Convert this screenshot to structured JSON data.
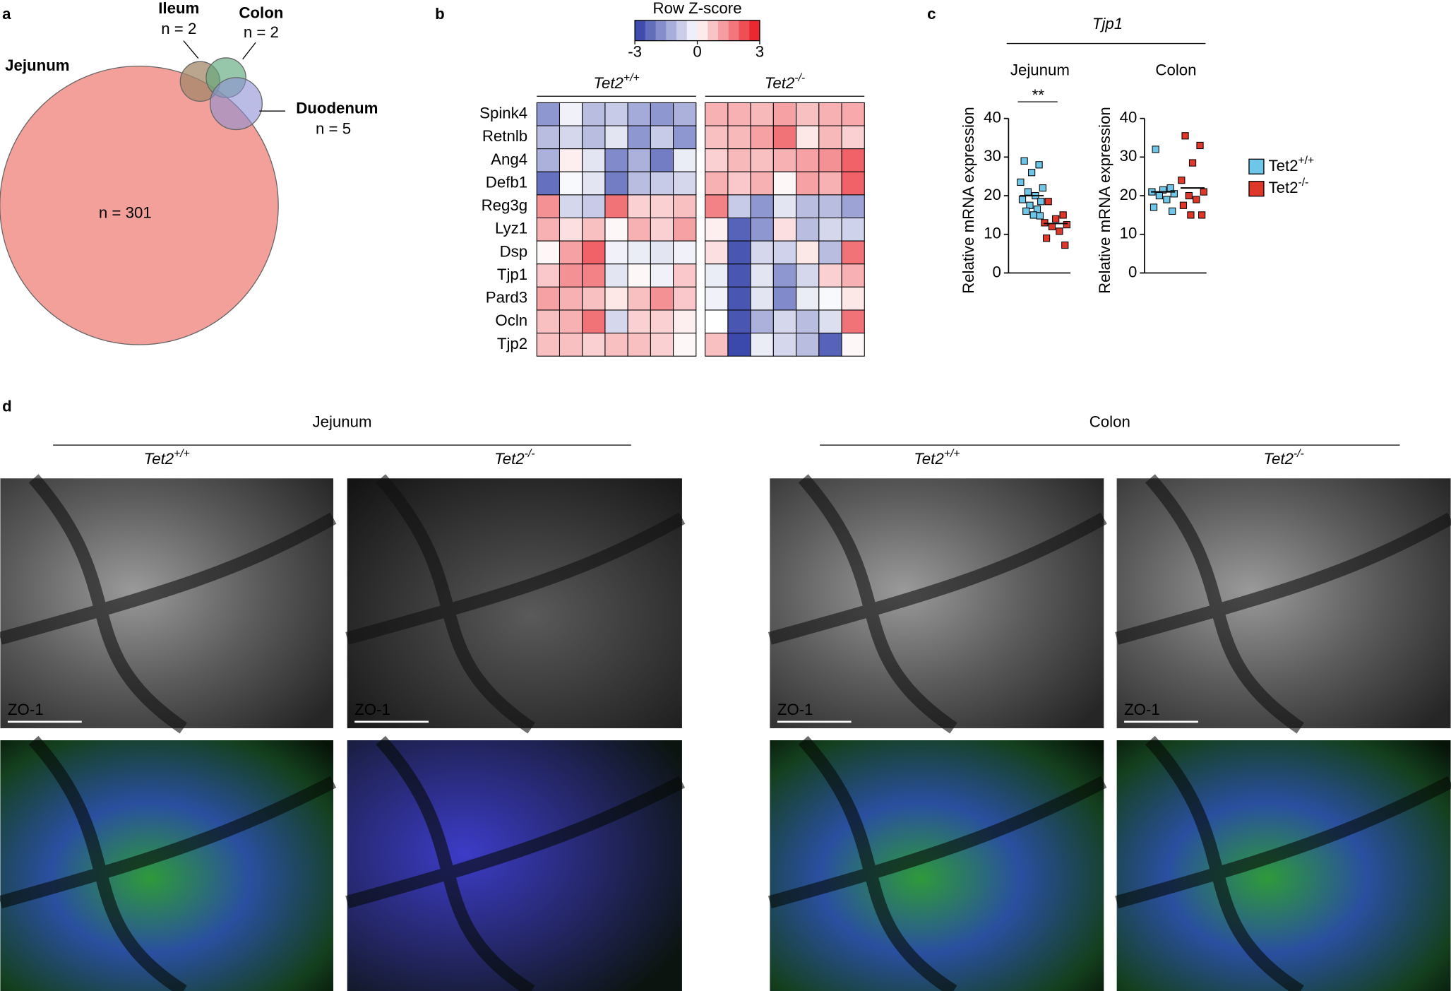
{
  "chart_data": [
    {
      "type": "venn",
      "panel": "a",
      "categories": [
        "Jejunum",
        "Ileum",
        "Colon",
        "Duodenum"
      ],
      "values": [
        301,
        2,
        2,
        5
      ],
      "value_labels": [
        "n = 301",
        "n = 2",
        "n = 2",
        "n = 5"
      ],
      "colors": [
        "#f4a09a",
        "#a3876a",
        "#5fa97d",
        "#8d8fd3"
      ],
      "label_colors": [
        "#e2403b",
        "#7a5c34",
        "#2c7a4e",
        "#3a4fa3"
      ]
    },
    {
      "type": "heatmap",
      "panel": "b",
      "colorbar_title": "Row Z-score",
      "zlim": [
        -3,
        3
      ],
      "zticks": [
        -3,
        0,
        3
      ],
      "colors": [
        "#2d3ca6",
        "#ffffff",
        "#e8141c"
      ],
      "categories": [
        "Spink4",
        "Retnlb",
        "Ang4",
        "Defb1",
        "Reg3g",
        "Lyz1",
        "Dsp",
        "Tjp1",
        "Pard3",
        "Ocln",
        "Tjp2"
      ],
      "groups": [
        {
          "name": "Tet2",
          "sup": "+/+",
          "values": [
            [
              -1.6,
              -0.2,
              -1.0,
              -0.8,
              -1.3,
              -1.6,
              -1.2
            ],
            [
              -1.0,
              -0.6,
              -1.0,
              -0.4,
              -1.6,
              -0.8,
              -1.6
            ],
            [
              -1.2,
              0.2,
              -0.4,
              -1.8,
              -1.2,
              -2.0,
              -0.3
            ],
            [
              -2.2,
              -0.1,
              -0.4,
              -2.0,
              -1.0,
              -0.8,
              -0.6
            ],
            [
              1.4,
              -0.6,
              -0.8,
              1.8,
              0.6,
              0.6,
              0.8
            ],
            [
              1.0,
              0.4,
              0.8,
              0.1,
              1.0,
              0.6,
              1.2
            ],
            [
              0.1,
              1.2,
              2.0,
              -0.2,
              -0.3,
              -0.4,
              -0.2
            ],
            [
              0.7,
              1.4,
              1.6,
              -0.4,
              0.1,
              -0.2,
              0.7
            ],
            [
              1.2,
              1.0,
              0.8,
              0.3,
              0.8,
              1.4,
              0.7
            ],
            [
              0.8,
              1.0,
              1.8,
              -0.6,
              0.6,
              0.6,
              0.2
            ],
            [
              0.8,
              0.8,
              0.6,
              0.8,
              0.8,
              0.6,
              0.1
            ]
          ]
        },
        {
          "name": "Tet2",
          "sup": "-/-",
          "values": [
            [
              1.0,
              1.0,
              0.9,
              1.2,
              0.8,
              1.0,
              1.1
            ],
            [
              0.8,
              0.9,
              1.2,
              1.8,
              0.3,
              0.9,
              0.6
            ],
            [
              0.6,
              0.9,
              0.8,
              1.0,
              1.2,
              1.4,
              2.0
            ],
            [
              1.0,
              0.7,
              1.0,
              0.1,
              1.2,
              1.0,
              2.0
            ],
            [
              1.6,
              -0.8,
              -1.6,
              -0.4,
              -1.0,
              -1.0,
              -1.4
            ],
            [
              0.2,
              -2.4,
              -1.6,
              0.4,
              -1.0,
              -0.6,
              -0.7
            ],
            [
              0.4,
              -2.6,
              -0.6,
              -0.7,
              0.3,
              -1.0,
              1.8
            ],
            [
              -0.3,
              -2.6,
              -0.4,
              -1.6,
              -0.6,
              0.6,
              1.0
            ],
            [
              -0.2,
              -2.6,
              -0.4,
              -1.8,
              -0.3,
              -0.1,
              0.3
            ],
            [
              0.0,
              -2.6,
              -1.2,
              -0.6,
              -1.0,
              -0.5,
              1.8
            ],
            [
              0.8,
              -2.8,
              -0.3,
              -0.6,
              -1.0,
              -2.4,
              0.1
            ]
          ]
        }
      ]
    },
    {
      "type": "dot",
      "panel": "c",
      "title": "Tjp1",
      "ylabel": "Relative mRNA expression",
      "ylim": [
        0,
        40
      ],
      "yticks": [
        0,
        10,
        20,
        30,
        40
      ],
      "series": [
        {
          "name": "Tet2",
          "sup": "+/+",
          "color": "#6ec6e8"
        },
        {
          "name": "Tet2",
          "sup": "-/-",
          "color": "#e0372b"
        }
      ],
      "plots": [
        {
          "title": "Jejunum",
          "significance": "**",
          "groups": [
            {
              "values": [
                29,
                28,
                26,
                23.5,
                22,
                21,
                20,
                19,
                18.5,
                17.5,
                16.5,
                16,
                15,
                14.8
              ],
              "mean": 20
            },
            {
              "values": [
                18.5,
                15,
                14,
                13,
                12.5,
                12,
                10.8,
                9,
                7.2
              ],
              "mean": 12.8
            }
          ]
        },
        {
          "title": "Colon",
          "groups": [
            {
              "values": [
                32,
                22,
                21.5,
                21,
                20.5,
                20,
                19,
                17,
                16
              ],
              "mean": 21
            },
            {
              "values": [
                35.5,
                33,
                28.5,
                24,
                21,
                20,
                19,
                17.5,
                15,
                15
              ],
              "mean": 22
            }
          ]
        }
      ]
    }
  ],
  "panel_d": {
    "panel": "d",
    "stain": "ZO-1",
    "sections": [
      {
        "title": "Jejunum",
        "columns": [
          {
            "name": "Tet2",
            "sup": "+/+"
          },
          {
            "name": "Tet2",
            "sup": "-/-"
          }
        ]
      },
      {
        "title": "Colon",
        "columns": [
          {
            "name": "Tet2",
            "sup": "+/+"
          },
          {
            "name": "Tet2",
            "sup": "-/-"
          }
        ]
      }
    ]
  }
}
